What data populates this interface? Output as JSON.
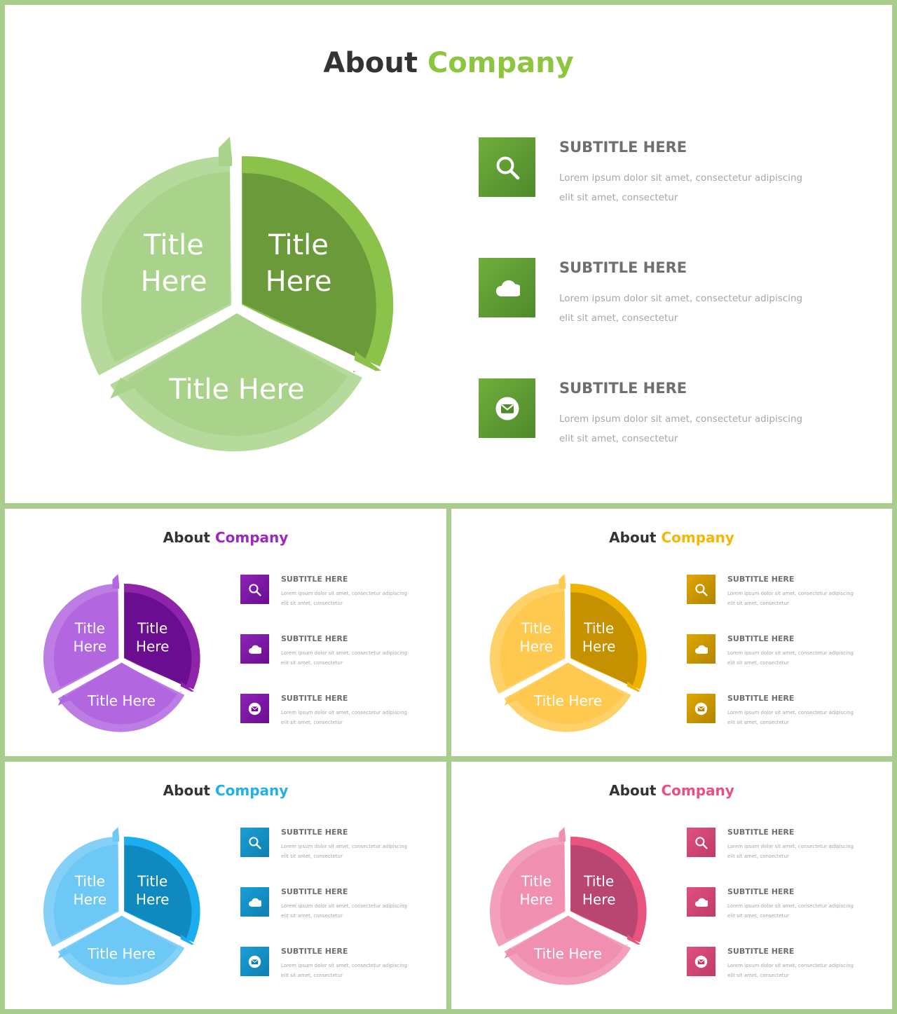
{
  "title_prefix": "About",
  "title_accent": "Company",
  "segments": {
    "left": [
      "Title",
      "Here"
    ],
    "right": [
      "Title",
      "Here"
    ],
    "bottom": "Title Here"
  },
  "items": [
    {
      "icon": "search-icon",
      "subtitle": "SUBTITLE HERE",
      "line1": "Lorem ipsum dolor sit amet, consectetur adipiscing",
      "line2": "elit sit amet, consectetur"
    },
    {
      "icon": "cloud-icon",
      "subtitle": "SUBTITLE HERE",
      "line1": "Lorem ipsum dolor sit amet, consectetur adipiscing",
      "line2": "elit sit amet, consectetur"
    },
    {
      "icon": "mail-icon",
      "subtitle": "SUBTITLE HERE",
      "line1": "Lorem ipsum dolor sit amet, consectetur adipiscing",
      "line2": "elit sit amet, consectetur"
    }
  ],
  "themes": {
    "green": {
      "light": "#a9d38a",
      "mid": "#8bc34a",
      "dark": "#6a9a3a",
      "accent": "#8cc63f",
      "box1": "#6fae3c",
      "box2": "#4f8a2b"
    },
    "purple": {
      "light": "#b266e0",
      "mid": "#8e24aa",
      "dark": "#6a0d91",
      "accent": "#9b27c4",
      "box1": "#8e24b8",
      "box2": "#6a0d91"
    },
    "yellow": {
      "light": "#ffc94f",
      "mid": "#f0b400",
      "dark": "#c59100",
      "accent": "#f5b800",
      "box1": "#e0a700",
      "box2": "#b38400"
    },
    "blue": {
      "light": "#6ec8f5",
      "mid": "#1aaef0",
      "dark": "#1089bf",
      "accent": "#22b1e6",
      "box1": "#1a9fd8",
      "box2": "#0f7fb0"
    },
    "pink": {
      "light": "#f08fb0",
      "mid": "#e8537f",
      "dark": "#b94670",
      "accent": "#e84f87",
      "box1": "#e0517f",
      "box2": "#c03a68"
    }
  }
}
